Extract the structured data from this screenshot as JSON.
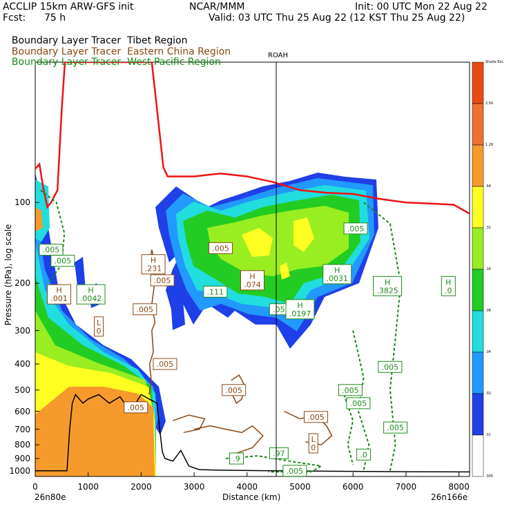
{
  "header": {
    "model": "ACCLIP 15km ARW-GFS init",
    "org": "NCAR/MMM",
    "init": "Init: 00 UTC Mon 22 Aug 22",
    "fcst_label": "Fcst:",
    "fcst_value": "75 h",
    "valid": "Valid: 03 UTC Thu 25 Aug 22 (12 KST Thu 25 Aug 22)"
  },
  "legend": [
    {
      "name": "Boundary Layer Tracer",
      "region": "Tibet Region",
      "color": "#000000"
    },
    {
      "name": "Boundary Layer Tracer",
      "region": "Eastern China Region",
      "color": "#8b4513"
    },
    {
      "name": "Boundary Layer Tracer",
      "region": "West Pacific Region",
      "color": "#1a8a1a"
    }
  ],
  "chart_data": {
    "type": "cross-section",
    "ylabel": "Pressure (hPa), log scale",
    "xlabel": "Distance (km)",
    "x_start_label": "26n80e",
    "x_end_label": "26n166e",
    "xlim": [
      0,
      8200
    ],
    "ylim": [
      1050,
      30
    ],
    "xticks": [
      "0",
      "1000",
      "2000",
      "3000",
      "4000",
      "5000",
      "6000",
      "7000",
      "8000"
    ],
    "xtick_values": [
      0,
      1000,
      2000,
      3000,
      4000,
      5000,
      6000,
      7000,
      8000
    ],
    "yticks": [
      "100",
      "200",
      "300",
      "400",
      "500",
      "600",
      "700",
      "800",
      "900",
      "1000"
    ],
    "ytick_values": [
      100,
      200,
      300,
      400,
      500,
      600,
      700,
      800,
      900,
      1000
    ],
    "marker": {
      "label": "ROAH",
      "x_km": 4550
    },
    "colorbar": {
      "labels": [
        "Shade Ext.",
        "2.56",
        "1.28",
        ".64",
        ".32",
        ".16",
        ".08",
        ".04",
        ".02",
        ".01",
        ".005"
      ],
      "colors": [
        "#e84a14",
        "#f07030",
        "#f69a2c",
        "#ffff22",
        "#99ee22",
        "#22cc22",
        "#22dddd",
        "#2299ff",
        "#1f3fe8",
        "#ffffff"
      ]
    },
    "tropopause_red": [
      [
        0,
        75
      ],
      [
        80,
        72
      ],
      [
        150,
        88
      ],
      [
        230,
        104
      ],
      [
        300,
        100
      ],
      [
        420,
        90
      ],
      [
        500,
        45
      ],
      [
        560,
        30
      ],
      [
        1500,
        30
      ],
      [
        2200,
        30
      ],
      [
        2300,
        45
      ],
      [
        2420,
        74
      ],
      [
        2500,
        80
      ],
      [
        3000,
        80
      ],
      [
        3500,
        78
      ],
      [
        4000,
        80
      ],
      [
        4500,
        84
      ],
      [
        5000,
        90
      ],
      [
        5500,
        92
      ],
      [
        6000,
        93
      ],
      [
        6500,
        97
      ],
      [
        7000,
        100
      ],
      [
        7500,
        101
      ],
      [
        7900,
        102
      ],
      [
        8200,
        110
      ]
    ],
    "terrain_black": [
      [
        0,
        1000
      ],
      [
        400,
        1000
      ],
      [
        600,
        1000
      ],
      [
        650,
        700
      ],
      [
        700,
        560
      ],
      [
        760,
        520
      ],
      [
        900,
        560
      ],
      [
        1000,
        540
      ],
      [
        1200,
        520
      ],
      [
        1400,
        560
      ],
      [
        1600,
        530
      ],
      [
        1800,
        600
      ],
      [
        2000,
        520
      ],
      [
        2150,
        540
      ],
      [
        2300,
        560
      ],
      [
        2350,
        700
      ],
      [
        2400,
        850
      ],
      [
        2450,
        900
      ],
      [
        2600,
        920
      ],
      [
        2750,
        840
      ],
      [
        2900,
        960
      ],
      [
        3100,
        990
      ],
      [
        3500,
        995
      ],
      [
        4500,
        1000
      ],
      [
        6000,
        1005
      ],
      [
        7000,
        1008
      ],
      [
        8200,
        1010
      ]
    ],
    "contour_labels": [
      {
        "text": ".005",
        "x_km": 300,
        "p": 150,
        "color": "green"
      },
      {
        "text": ".005",
        "x_km": 520,
        "p": 165,
        "color": "green"
      },
      {
        "text": "H\n.001",
        "x_km": 450,
        "p": 220,
        "color": "brown"
      },
      {
        "text": "H\n.0042",
        "x_km": 1050,
        "p": 220,
        "color": "green"
      },
      {
        "text": "L\n0",
        "x_km": 1200,
        "p": 290,
        "color": "brown"
      },
      {
        "text": "H\n.231",
        "x_km": 2230,
        "p": 170,
        "color": "brown"
      },
      {
        "text": ".005",
        "x_km": 2400,
        "p": 195,
        "color": "brown"
      },
      {
        "text": ".005",
        "x_km": 2070,
        "p": 250,
        "color": "brown"
      },
      {
        "text": ".005",
        "x_km": 2450,
        "p": 400,
        "color": "brown"
      },
      {
        "text": ".005",
        "x_km": 3500,
        "p": 148,
        "color": "brown"
      },
      {
        "text": "H\n.074",
        "x_km": 4100,
        "p": 195,
        "color": "brown"
      },
      {
        "text": ".111",
        "x_km": 3400,
        "p": 215,
        "color": "green"
      },
      {
        "text": ".05",
        "x_km": 4600,
        "p": 250,
        "color": "green"
      },
      {
        "text": "H\n.0197",
        "x_km": 5000,
        "p": 250,
        "color": "green"
      },
      {
        "text": "H\n.0031",
        "x_km": 5700,
        "p": 185,
        "color": "green"
      },
      {
        "text": "H\n.3825",
        "x_km": 6650,
        "p": 205,
        "color": "green"
      },
      {
        "text": "H\n.0",
        "x_km": 7800,
        "p": 205,
        "color": "green"
      },
      {
        "text": ".005",
        "x_km": 6050,
        "p": 125,
        "color": "green"
      },
      {
        "text": ".005",
        "x_km": 3750,
        "p": 500,
        "color": "brown"
      },
      {
        "text": ".005",
        "x_km": 1900,
        "p": 580,
        "color": "brown"
      },
      {
        "text": ".005",
        "x_km": 5300,
        "p": 630,
        "color": "brown"
      },
      {
        "text": ".005",
        "x_km": 5950,
        "p": 500,
        "color": "green"
      },
      {
        "text": ".005",
        "x_km": 6100,
        "p": 560,
        "color": "green"
      },
      {
        "text": ".005",
        "x_km": 6700,
        "p": 410,
        "color": "green"
      },
      {
        "text": ".005",
        "x_km": 6800,
        "p": 690,
        "color": "green"
      },
      {
        "text": "L\n0",
        "x_km": 5250,
        "p": 790,
        "color": "brown"
      },
      {
        "text": ".0",
        "x_km": 6200,
        "p": 870,
        "color": "green"
      },
      {
        "text": ".9",
        "x_km": 3800,
        "p": 900,
        "color": "green"
      },
      {
        "text": ".97",
        "x_km": 4600,
        "p": 860,
        "color": "green"
      },
      {
        "text": ".005",
        "x_km": 4900,
        "p": 1000,
        "color": "green"
      }
    ]
  }
}
